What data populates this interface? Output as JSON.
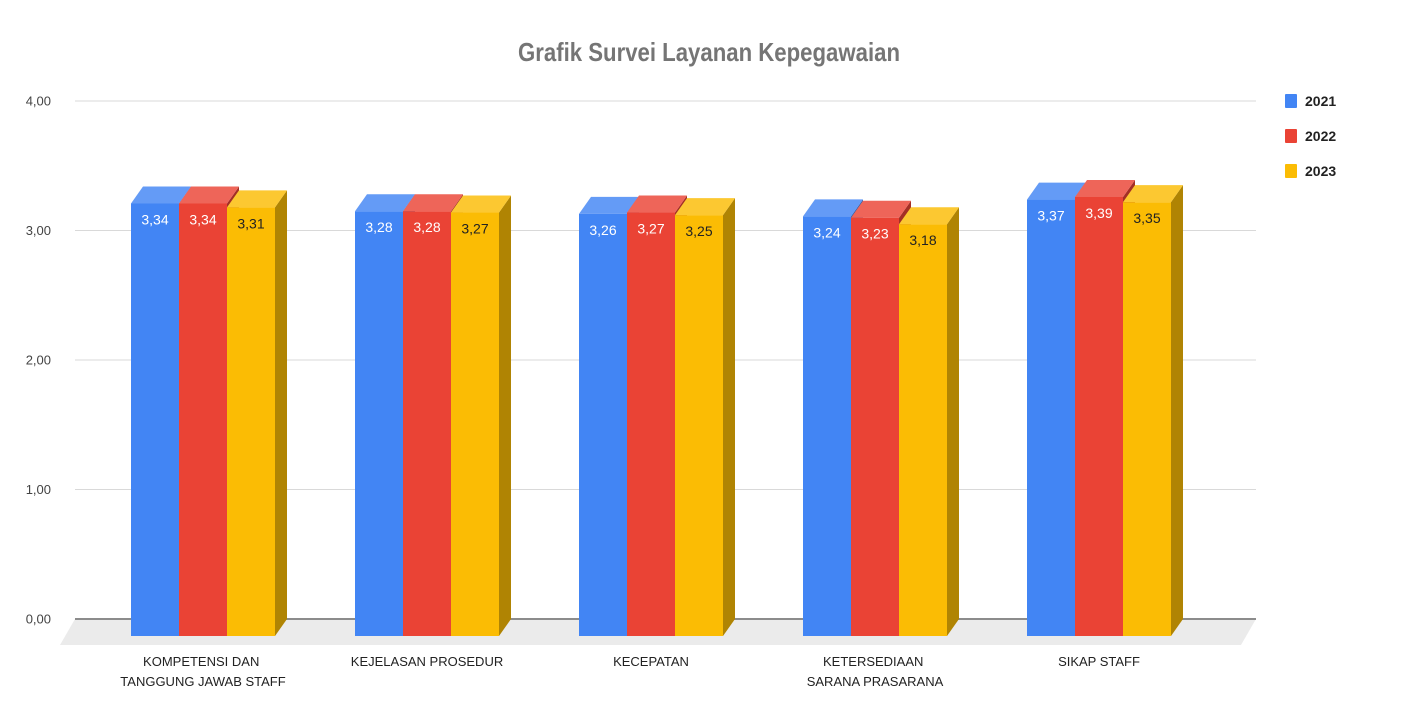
{
  "chart_data": {
    "type": "bar",
    "three_d": true,
    "title": "Grafik Survei Layanan Kepegawaian",
    "categories": [
      "KOMPETENSI DAN\nTANGGUNG JAWAB STAFF",
      "KEJELASAN PROSEDUR",
      "KECEPATAN",
      "KETERSEDIAAN\nSARANA PRASARANA",
      "SIKAP STAFF"
    ],
    "series": [
      {
        "name": "2021",
        "color": "#4285F4",
        "values": [
          3.34,
          3.28,
          3.26,
          3.24,
          3.37
        ]
      },
      {
        "name": "2022",
        "color": "#EA4335",
        "values": [
          3.34,
          3.28,
          3.27,
          3.23,
          3.39
        ]
      },
      {
        "name": "2023",
        "color": "#FBBC04",
        "values": [
          3.31,
          3.27,
          3.25,
          3.18,
          3.35
        ]
      }
    ],
    "ylim": [
      0,
      4
    ],
    "yticks": [
      "0,00",
      "1,00",
      "2,00",
      "3,00",
      "4,00"
    ],
    "data_labels": true,
    "grid": true,
    "legend": "right"
  }
}
